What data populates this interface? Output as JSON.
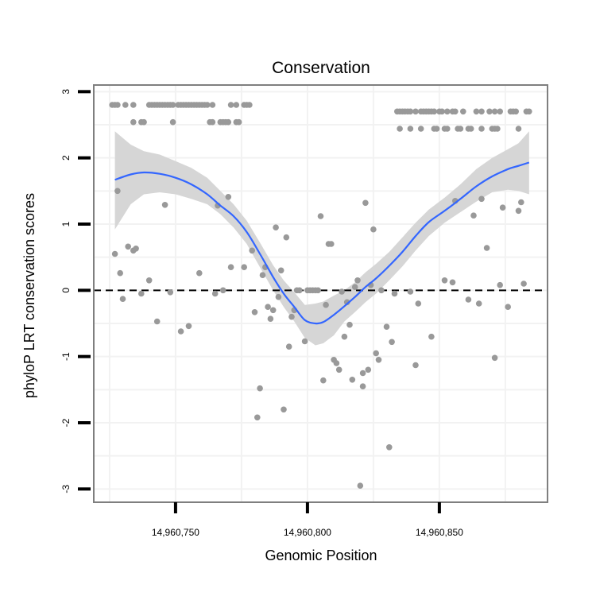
{
  "chart_data": {
    "type": "scatter",
    "title": "Conservation",
    "xlabel": "Genomic Position",
    "ylabel": "phyloP LRT conservation scores",
    "xlim": [
      14960719,
      14960891
    ],
    "ylim": [
      -3.2,
      3.1
    ],
    "x_ticks": [
      14960750,
      14960800,
      14960850
    ],
    "x_tick_labels": [
      "14,960,750",
      "14,960,800",
      "14,960,850"
    ],
    "y_ticks": [
      -3,
      -2,
      -1,
      0,
      1,
      2,
      3
    ],
    "y_tick_labels": [
      "-3",
      "-2",
      "-1",
      "0",
      "1",
      "2",
      "3"
    ],
    "reference_line": {
      "y": 0,
      "style": "dashed"
    },
    "colors": {
      "points": "#999999",
      "smooth": "#3366ff",
      "ribbon": "#d6d6d6",
      "panel_border": "#7f7f7f",
      "grid": "#f2f2f2"
    },
    "points": [
      [
        14960726,
        2.8
      ],
      [
        14960727,
        2.8
      ],
      [
        14960728,
        2.8
      ],
      [
        14960731,
        2.8
      ],
      [
        14960734,
        2.8
      ],
      [
        14960740,
        2.8
      ],
      [
        14960741,
        2.8
      ],
      [
        14960742,
        2.8
      ],
      [
        14960743,
        2.8
      ],
      [
        14960744,
        2.8
      ],
      [
        14960745,
        2.8
      ],
      [
        14960746,
        2.8
      ],
      [
        14960747,
        2.8
      ],
      [
        14960748,
        2.8
      ],
      [
        14960749,
        2.8
      ],
      [
        14960751,
        2.8
      ],
      [
        14960752,
        2.8
      ],
      [
        14960753,
        2.8
      ],
      [
        14960754,
        2.8
      ],
      [
        14960755,
        2.8
      ],
      [
        14960756,
        2.8
      ],
      [
        14960757,
        2.8
      ],
      [
        14960758,
        2.8
      ],
      [
        14960759,
        2.8
      ],
      [
        14960760,
        2.8
      ],
      [
        14960761,
        2.8
      ],
      [
        14960762,
        2.8
      ],
      [
        14960764,
        2.8
      ],
      [
        14960771,
        2.8
      ],
      [
        14960773,
        2.8
      ],
      [
        14960776,
        2.8
      ],
      [
        14960777,
        2.8
      ],
      [
        14960778,
        2.8
      ],
      [
        14960734,
        2.54
      ],
      [
        14960737,
        2.54
      ],
      [
        14960738,
        2.54
      ],
      [
        14960749,
        2.54
      ],
      [
        14960763,
        2.54
      ],
      [
        14960764,
        2.54
      ],
      [
        14960767,
        2.54
      ],
      [
        14960768,
        2.54
      ],
      [
        14960769,
        2.54
      ],
      [
        14960770,
        2.54
      ],
      [
        14960773,
        2.54
      ],
      [
        14960774,
        2.54
      ],
      [
        14960834,
        2.7
      ],
      [
        14960835,
        2.7
      ],
      [
        14960836,
        2.7
      ],
      [
        14960837,
        2.7
      ],
      [
        14960838,
        2.7
      ],
      [
        14960839,
        2.7
      ],
      [
        14960841,
        2.7
      ],
      [
        14960843,
        2.7
      ],
      [
        14960844,
        2.7
      ],
      [
        14960845,
        2.7
      ],
      [
        14960846,
        2.7
      ],
      [
        14960847,
        2.7
      ],
      [
        14960848,
        2.7
      ],
      [
        14960850,
        2.7
      ],
      [
        14960851,
        2.7
      ],
      [
        14960853,
        2.7
      ],
      [
        14960855,
        2.7
      ],
      [
        14960856,
        2.7
      ],
      [
        14960859,
        2.7
      ],
      [
        14960864,
        2.7
      ],
      [
        14960866,
        2.7
      ],
      [
        14960869,
        2.7
      ],
      [
        14960871,
        2.7
      ],
      [
        14960873,
        2.7
      ],
      [
        14960877,
        2.7
      ],
      [
        14960878,
        2.7
      ],
      [
        14960879,
        2.7
      ],
      [
        14960883,
        2.7
      ],
      [
        14960884,
        2.7
      ],
      [
        14960835,
        2.44
      ],
      [
        14960839,
        2.44
      ],
      [
        14960843,
        2.44
      ],
      [
        14960848,
        2.44
      ],
      [
        14960849,
        2.44
      ],
      [
        14960852,
        2.44
      ],
      [
        14960853,
        2.44
      ],
      [
        14960857,
        2.44
      ],
      [
        14960858,
        2.44
      ],
      [
        14960861,
        2.44
      ],
      [
        14960862,
        2.44
      ],
      [
        14960866,
        2.44
      ],
      [
        14960870,
        2.44
      ],
      [
        14960871,
        2.44
      ],
      [
        14960872,
        2.44
      ],
      [
        14960880,
        2.44
      ],
      [
        14960727,
        0.55
      ],
      [
        14960728,
        1.5
      ],
      [
        14960729,
        0.26
      ],
      [
        14960730,
        -0.13
      ],
      [
        14960732,
        0.66
      ],
      [
        14960734,
        0.6
      ],
      [
        14960735,
        0.63
      ],
      [
        14960737,
        -0.05
      ],
      [
        14960740,
        0.15
      ],
      [
        14960743,
        -0.47
      ],
      [
        14960746,
        1.29
      ],
      [
        14960748,
        -0.03
      ],
      [
        14960752,
        -0.62
      ],
      [
        14960755,
        -0.54
      ],
      [
        14960759,
        0.26
      ],
      [
        14960765,
        -0.05
      ],
      [
        14960766,
        1.28
      ],
      [
        14960768,
        0.0
      ],
      [
        14960770,
        1.41
      ],
      [
        14960771,
        0.35
      ],
      [
        14960776,
        0.35
      ],
      [
        14960779,
        0.6
      ],
      [
        14960780,
        -0.33
      ],
      [
        14960781,
        -1.92
      ],
      [
        14960782,
        -1.48
      ],
      [
        14960783,
        0.23
      ],
      [
        14960784,
        0.35
      ],
      [
        14960785,
        -0.25
      ],
      [
        14960786,
        -0.43
      ],
      [
        14960787,
        -0.3
      ],
      [
        14960788,
        0.95
      ],
      [
        14960789,
        -0.1
      ],
      [
        14960790,
        0.3
      ],
      [
        14960791,
        -1.8
      ],
      [
        14960792,
        0.8
      ],
      [
        14960793,
        -0.85
      ],
      [
        14960794,
        -0.4
      ],
      [
        14960795,
        -0.3
      ],
      [
        14960796,
        0.0
      ],
      [
        14960797,
        0.0
      ],
      [
        14960799,
        -0.77
      ],
      [
        14960800,
        0.0
      ],
      [
        14960801,
        0.0
      ],
      [
        14960802,
        0.0
      ],
      [
        14960803,
        0.0
      ],
      [
        14960804,
        0.0
      ],
      [
        14960805,
        1.12
      ],
      [
        14960806,
        -1.36
      ],
      [
        14960807,
        -0.22
      ],
      [
        14960808,
        0.7
      ],
      [
        14960809,
        0.7
      ],
      [
        14960810,
        -1.05
      ],
      [
        14960811,
        -1.1
      ],
      [
        14960812,
        -1.2
      ],
      [
        14960813,
        -0.02
      ],
      [
        14960814,
        -0.7
      ],
      [
        14960815,
        -0.18
      ],
      [
        14960816,
        -0.52
      ],
      [
        14960817,
        -1.35
      ],
      [
        14960818,
        0.05
      ],
      [
        14960819,
        0.15
      ],
      [
        14960820,
        -2.95
      ],
      [
        14960821,
        -1.45
      ],
      [
        14960821,
        -1.25
      ],
      [
        14960822,
        1.32
      ],
      [
        14960823,
        -1.2
      ],
      [
        14960824,
        0.08
      ],
      [
        14960825,
        0.92
      ],
      [
        14960826,
        -0.95
      ],
      [
        14960827,
        -1.05
      ],
      [
        14960828,
        0.0
      ],
      [
        14960830,
        -0.55
      ],
      [
        14960831,
        -2.37
      ],
      [
        14960832,
        -0.78
      ],
      [
        14960833,
        -0.05
      ],
      [
        14960839,
        -0.02
      ],
      [
        14960841,
        -1.13
      ],
      [
        14960842,
        -0.2
      ],
      [
        14960847,
        -0.7
      ],
      [
        14960852,
        0.15
      ],
      [
        14960855,
        0.12
      ],
      [
        14960856,
        1.35
      ],
      [
        14960861,
        -0.14
      ],
      [
        14960863,
        1.13
      ],
      [
        14960865,
        -0.2
      ],
      [
        14960866,
        1.38
      ],
      [
        14960868,
        0.64
      ],
      [
        14960871,
        -1.02
      ],
      [
        14960873,
        0.08
      ],
      [
        14960874,
        1.25
      ],
      [
        14960876,
        -0.25
      ],
      [
        14960880,
        1.2
      ],
      [
        14960881,
        1.33
      ],
      [
        14960882,
        0.1
      ]
    ],
    "smooth": {
      "method": "loess",
      "x": [
        14960727,
        14960733,
        14960738,
        14960744,
        14960750,
        14960756,
        14960762,
        14960767,
        14960772,
        14960777,
        14960782,
        14960787,
        14960791,
        14960795,
        14960799,
        14960803,
        14960806,
        14960810,
        14960814,
        14960818,
        14960822,
        14960826,
        14960831,
        14960836,
        14960841,
        14960846,
        14960852,
        14960858,
        14960864,
        14960870,
        14960876,
        14960880,
        14960884
      ],
      "y": [
        1.67,
        1.75,
        1.78,
        1.76,
        1.7,
        1.6,
        1.45,
        1.28,
        1.12,
        0.88,
        0.55,
        0.2,
        -0.05,
        -0.25,
        -0.45,
        -0.5,
        -0.48,
        -0.37,
        -0.24,
        -0.1,
        0.05,
        0.18,
        0.37,
        0.58,
        0.82,
        1.03,
        1.2,
        1.38,
        1.57,
        1.72,
        1.83,
        1.88,
        1.93
      ],
      "lower": [
        0.92,
        1.3,
        1.45,
        1.48,
        1.45,
        1.38,
        1.3,
        1.15,
        0.95,
        0.7,
        0.35,
        0.0,
        -0.25,
        -0.47,
        -0.72,
        -0.83,
        -0.8,
        -0.68,
        -0.47,
        -0.33,
        -0.18,
        -0.05,
        0.15,
        0.36,
        0.6,
        0.82,
        1.02,
        1.18,
        1.34,
        1.48,
        1.52,
        1.5,
        1.45
      ],
      "upper": [
        2.4,
        2.2,
        2.1,
        2.05,
        1.95,
        1.85,
        1.7,
        1.5,
        1.3,
        1.05,
        0.72,
        0.38,
        0.15,
        -0.03,
        -0.22,
        -0.2,
        -0.17,
        -0.08,
        0.0,
        0.12,
        0.27,
        0.4,
        0.58,
        0.8,
        1.02,
        1.22,
        1.4,
        1.6,
        1.83,
        2.0,
        2.13,
        2.22,
        2.4
      ]
    }
  }
}
